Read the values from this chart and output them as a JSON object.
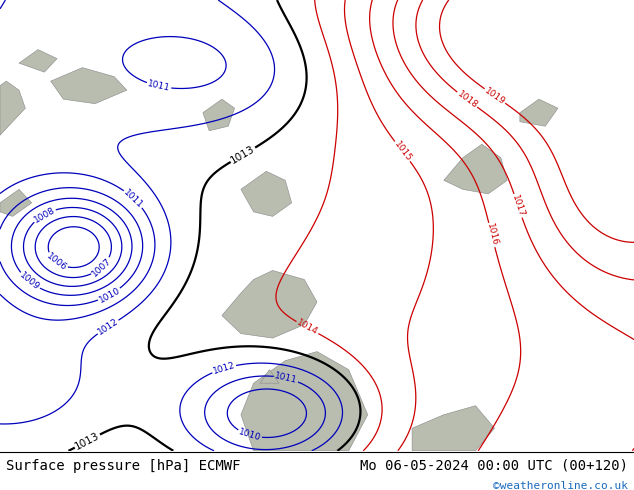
{
  "title_left": "Surface pressure [hPa] ECMWF",
  "title_right": "Mo 06-05-2024 00:00 UTC (00+120)",
  "credit": "©weatheronline.co.uk",
  "bg_color": "#b5d96b",
  "credit_color": "#1a6abf",
  "title_fontsize": 10,
  "figsize": [
    6.34,
    4.9
  ],
  "dpi": 100,
  "levels_blue": [
    1006,
    1007,
    1008,
    1009,
    1010,
    1011,
    1012
  ],
  "levels_black": [
    1013
  ],
  "levels_red": [
    1014,
    1015,
    1016,
    1017,
    1018,
    1019
  ],
  "color_blue": "#0000bb",
  "color_black": "#000000",
  "color_red": "#cc0000"
}
